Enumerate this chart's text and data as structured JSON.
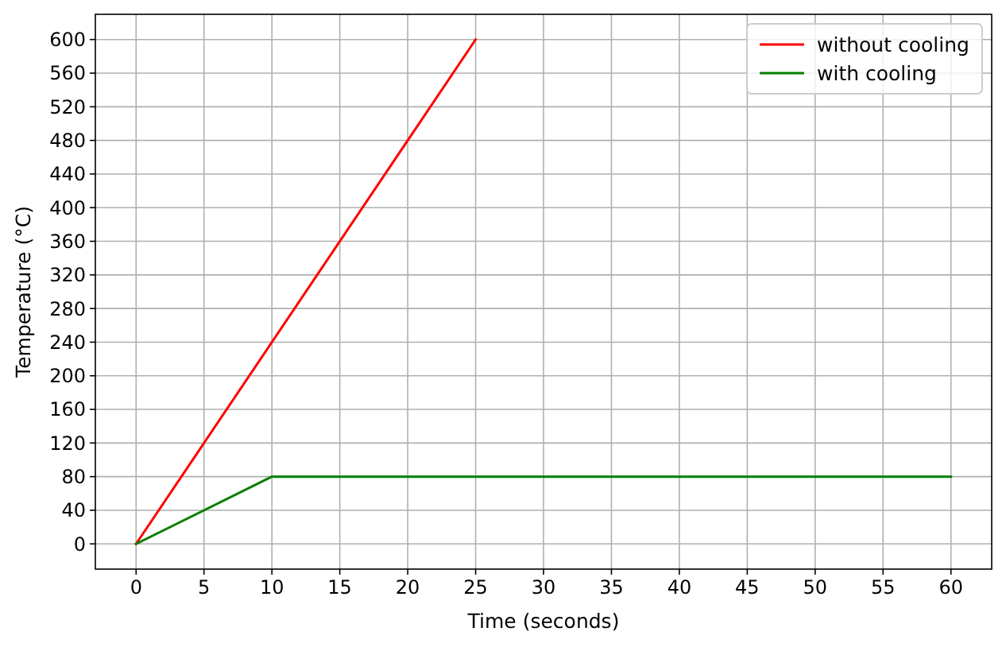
{
  "chart_data": {
    "type": "line",
    "xlabel": "Time (seconds)",
    "ylabel": "Temperature (°C)",
    "xlim": [
      -3,
      63
    ],
    "xticks": [
      0,
      5,
      10,
      15,
      20,
      25,
      30,
      35,
      40,
      45,
      50,
      55,
      60
    ],
    "ylim": [
      -30,
      630
    ],
    "yticks": [
      0,
      40,
      80,
      120,
      160,
      200,
      240,
      280,
      320,
      360,
      400,
      440,
      480,
      520,
      560,
      600
    ],
    "grid": true,
    "legend": "top right",
    "series": [
      {
        "name": "without cooling",
        "color": "#ff0000",
        "x": [
          0,
          25
        ],
        "values": [
          0,
          600
        ]
      },
      {
        "name": "with cooling",
        "color": "#008000",
        "x": [
          0,
          10,
          60
        ],
        "values": [
          0,
          80,
          80
        ]
      }
    ]
  }
}
